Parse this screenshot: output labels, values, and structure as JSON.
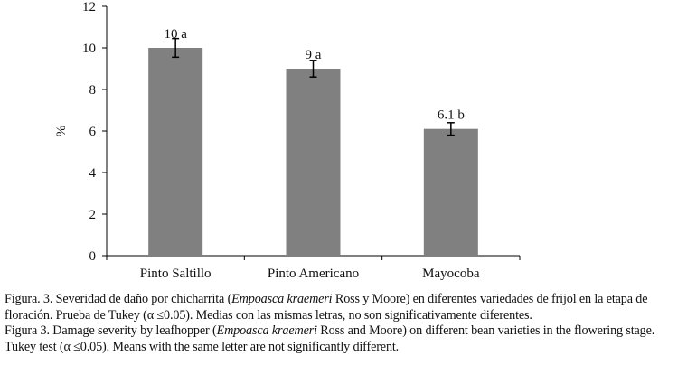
{
  "chart_data": {
    "type": "bar",
    "categories": [
      "Pinto Saltillo",
      "Pinto Americano",
      "Mayocoba"
    ],
    "values": [
      10.0,
      9.0,
      6.1
    ],
    "errors": [
      0.45,
      0.4,
      0.3
    ],
    "bar_labels": [
      "10 a",
      "9 a",
      "6.1 b"
    ],
    "ylabel": "%",
    "xlabel": "",
    "title": "",
    "ylim": [
      0,
      12
    ],
    "yticks": [
      0,
      2,
      4,
      6,
      8,
      10,
      12
    ],
    "grid": false,
    "legend": "none",
    "colors": {
      "bar": "#808080",
      "axis": "#000000",
      "error_bar": "#000000"
    }
  },
  "caption": {
    "es_prefix": "Figura. 3. Severidad de daño por chicharrita (",
    "es_species": "Empoasca  kraemeri",
    "es_suffix": " Ross y Moore) en diferentes variedades de frijol en la etapa de floración. Prueba de Tukey (α ≤0.05). Medias con las mismas letras, no son significativamente diferentes.",
    "en_prefix": "Figura 3. Damage severity by leafhopper (",
    "en_species": "Empoasca kraemeri",
    "en_suffix": " Ross and Moore) on different bean varieties in the flowering stage. Tukey test (α ≤0.05). Means with the same letter are not significantly different."
  }
}
